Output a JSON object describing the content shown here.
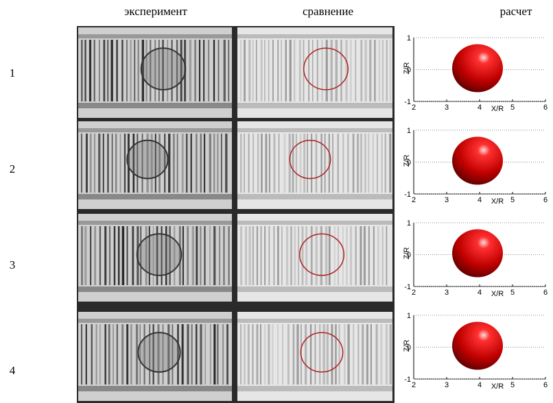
{
  "headers": [
    "эксперимент",
    "сравнение",
    "расчет"
  ],
  "rows": [
    "1",
    "2",
    "3",
    "4"
  ],
  "plots": {
    "xlabel": "X/R",
    "ylabel": "Z/R",
    "xlim": [
      2,
      6
    ],
    "ylim": [
      -1,
      1
    ],
    "xticks": [
      2,
      3,
      4,
      5,
      6
    ],
    "yticks": [
      1,
      0,
      -1
    ]
  }
}
